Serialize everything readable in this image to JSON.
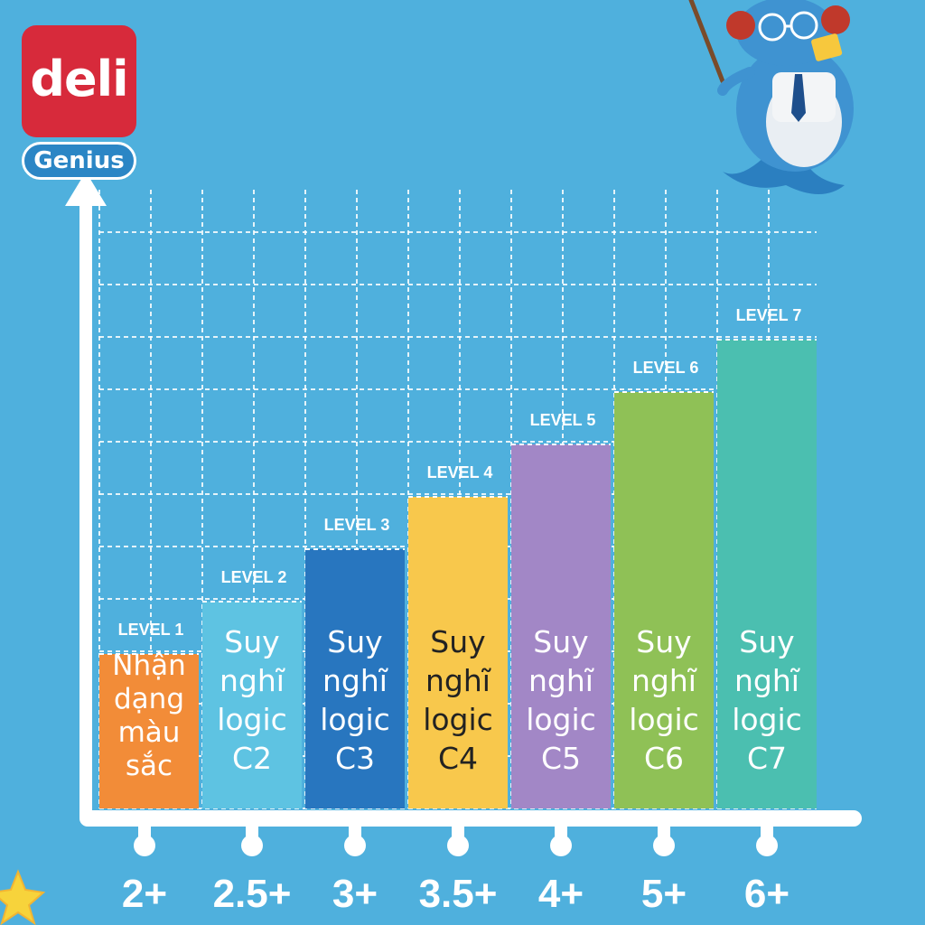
{
  "brand": {
    "logo_text": "deli",
    "sublogo_text": "Genius",
    "logo_color": "#d72a3b",
    "sublogo_color": "#2b86c5"
  },
  "mascot": {
    "icon": "teacher-whale-mascot-icon"
  },
  "chart_data": {
    "type": "bar",
    "categories": [
      "2+",
      "2.5+",
      "3+",
      "3.5+",
      "4+",
      "5+",
      "6+"
    ],
    "values": [
      1,
      2,
      3,
      4,
      5,
      6,
      7
    ],
    "level_labels": [
      "LEVEL 1",
      "LEVEL 2",
      "LEVEL 3",
      "LEVEL 4",
      "LEVEL 5",
      "LEVEL 6",
      "LEVEL 7"
    ],
    "bar_labels": [
      [
        "Nhận",
        "dạng",
        "màu",
        "sắc"
      ],
      [
        "Suy",
        "nghĩ",
        "logic",
        "C2"
      ],
      [
        "Suy",
        "nghĩ",
        "logic",
        "C3"
      ],
      [
        "Suy",
        "nghĩ",
        "logic",
        "C4"
      ],
      [
        "Suy",
        "nghĩ",
        "logic",
        "C5"
      ],
      [
        "Suy",
        "nghĩ",
        "logic",
        "C6"
      ],
      [
        "Suy",
        "nghĩ",
        "logic",
        "C7"
      ]
    ],
    "colors": [
      "#f28c38",
      "#5ec3e2",
      "#2876bf",
      "#f8c84c",
      "#a287c6",
      "#8fc156",
      "#4bbfb0"
    ],
    "label_colors": [
      "#ffffff",
      "#ffffff",
      "#ffffff",
      "#222222",
      "#ffffff",
      "#ffffff",
      "#ffffff"
    ],
    "ylim": [
      0,
      12
    ],
    "grid": true,
    "background": "#4fb0dd",
    "axis_color": "#ffffff"
  }
}
